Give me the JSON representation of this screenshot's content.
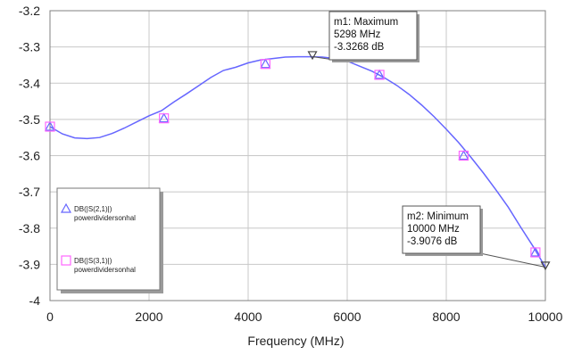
{
  "chart_data": {
    "type": "line",
    "xlabel": "Frequency (MHz)",
    "ylabel": "",
    "xlim": [
      0,
      10000
    ],
    "ylim": [
      -4,
      -3.2
    ],
    "x_ticks": [
      0,
      2000,
      4000,
      6000,
      8000,
      10000
    ],
    "y_ticks": [
      -3.2,
      -3.3,
      -3.4,
      -3.5,
      -3.6,
      -3.7,
      -3.8,
      -3.9,
      -4
    ],
    "x_tick_labels": [
      "0",
      "2000",
      "4000",
      "6000",
      "8000",
      "10000"
    ],
    "y_tick_labels": [
      "-3.2",
      "-3.3",
      "-3.4",
      "-3.5",
      "-3.6",
      "-3.7",
      "-3.8",
      "-3.9",
      "-4"
    ],
    "grid": true,
    "legend_position": "left",
    "series": [
      {
        "name": "DB(|S(2,1)|)",
        "subname": "powerdividersonhal",
        "color": "#6666ff",
        "marker": "triangle",
        "x": [
          0,
          250,
          500,
          750,
          1000,
          1250,
          1500,
          1750,
          2000,
          2250,
          2500,
          2750,
          3000,
          3250,
          3500,
          3750,
          4000,
          4250,
          4500,
          4750,
          5000,
          5250,
          5500,
          5750,
          6000,
          6250,
          6500,
          6750,
          7000,
          7250,
          7500,
          7750,
          8000,
          8250,
          8500,
          8750,
          9000,
          9250,
          9500,
          9750,
          10000
        ],
        "y": [
          -3.52,
          -3.54,
          -3.551,
          -3.553,
          -3.55,
          -3.539,
          -3.524,
          -3.507,
          -3.49,
          -3.476,
          -3.452,
          -3.43,
          -3.407,
          -3.384,
          -3.365,
          -3.356,
          -3.344,
          -3.336,
          -3.332,
          -3.328,
          -3.327,
          -3.327,
          -3.328,
          -3.332,
          -3.339,
          -3.353,
          -3.367,
          -3.385,
          -3.406,
          -3.431,
          -3.46,
          -3.492,
          -3.527,
          -3.564,
          -3.605,
          -3.648,
          -3.694,
          -3.742,
          -3.797,
          -3.85,
          -3.9076
        ],
        "marker_x": [
          0,
          2300,
          4350,
          5298,
          6650,
          8350,
          9800,
          10000
        ],
        "marker_y": [
          -3.52,
          -3.497,
          -3.347,
          -3.3268,
          -3.377,
          -3.6,
          -3.867,
          -3.9076
        ]
      },
      {
        "name": "DB(|S(3,1)|)",
        "subname": "powerdividersonhal",
        "color": "#ff66ff",
        "marker": "square",
        "marker_x": [
          0,
          2300,
          4350,
          6650,
          8350,
          9800
        ],
        "marker_y": [
          -3.52,
          -3.497,
          -3.347,
          -3.377,
          -3.6,
          -3.867
        ]
      }
    ],
    "markers": [
      {
        "id": "m1",
        "lines": [
          "m1: Maximum",
          "5298 MHz",
          "-3.3268 dB"
        ],
        "x": 5298,
        "y": -3.3268
      },
      {
        "id": "m2",
        "lines": [
          "m2: Minimum",
          "10000 MHz",
          "-3.9076 dB"
        ],
        "x": 10000,
        "y": -3.9076
      }
    ]
  }
}
